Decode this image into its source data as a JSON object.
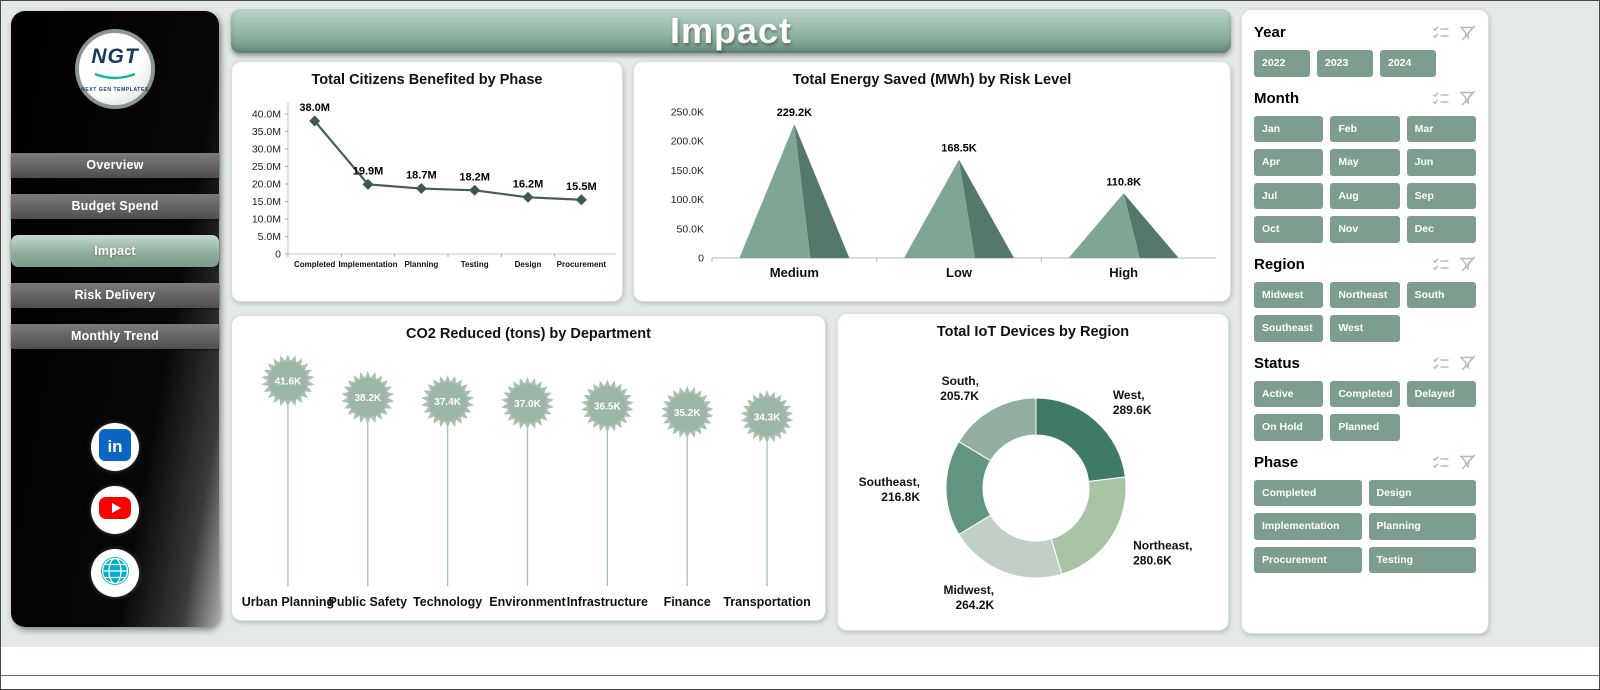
{
  "header": {
    "title": "Impact"
  },
  "sidebar": {
    "logo": {
      "text": "NGT",
      "subtext": "NEXT GEN TEMPLATES"
    },
    "items": [
      {
        "label": "Overview",
        "active": false
      },
      {
        "label": "Budget Spend",
        "active": false
      },
      {
        "label": "Impact",
        "active": true
      },
      {
        "label": "Risk Delivery",
        "active": false
      },
      {
        "label": "Monthly Trend",
        "active": false
      }
    ],
    "social": [
      "linkedin-icon",
      "youtube-icon",
      "globe-icon"
    ]
  },
  "chart_data": [
    {
      "id": "citizens_by_phase",
      "type": "line",
      "title": "Total Citizens Benefited by Phase",
      "categories": [
        "Completed",
        "Implementation",
        "Planning",
        "Testing",
        "Design",
        "Procurement"
      ],
      "values": [
        38.0,
        19.9,
        18.7,
        18.2,
        16.2,
        15.5
      ],
      "labels": [
        "38.0M",
        "19.9M",
        "18.7M",
        "18.2M",
        "16.2M",
        "15.5M"
      ],
      "unit": "M",
      "ylim": [
        0,
        40
      ],
      "yticks": [
        "0",
        "5.0M",
        "10.0M",
        "15.0M",
        "20.0M",
        "25.0M",
        "30.0M",
        "35.0M",
        "40.0M"
      ],
      "grid": false,
      "legend": "none"
    },
    {
      "id": "energy_saved_by_risk",
      "type": "pyramid",
      "title": "Total Energy Saved (MWh) by Risk Level",
      "categories": [
        "Medium",
        "Low",
        "High"
      ],
      "values": [
        229.2,
        168.5,
        110.8
      ],
      "labels": [
        "229.2K",
        "168.5K",
        "110.8K"
      ],
      "unit": "K",
      "ylim": [
        0,
        250
      ],
      "yticks": [
        "0",
        "50.0K",
        "100.0K",
        "150.0K",
        "200.0K",
        "250.0K"
      ],
      "grid": false,
      "legend": "none"
    },
    {
      "id": "co2_reduced_by_department",
      "type": "lollipop",
      "title": "CO2 Reduced (tons) by Department",
      "categories": [
        "Urban Planning",
        "Public Safety",
        "Technology",
        "Environment",
        "Infrastructure",
        "Finance",
        "Transportation"
      ],
      "values": [
        41.6,
        38.2,
        37.4,
        37.0,
        36.5,
        35.2,
        34.3
      ],
      "labels": [
        "41.6K",
        "38.2K",
        "37.4K",
        "37.0K",
        "36.5K",
        "35.2K",
        "34.3K"
      ],
      "unit": "K",
      "ylim": [
        0,
        45
      ],
      "grid": false,
      "legend": "none"
    },
    {
      "id": "iot_devices_by_region",
      "type": "donut",
      "title": "Total IoT Devices by Region",
      "categories": [
        "West",
        "Northeast",
        "Midwest",
        "Southeast",
        "South"
      ],
      "values": [
        289.6,
        280.6,
        264.2,
        216.8,
        205.7
      ],
      "labels": [
        "289.6K",
        "280.6K",
        "264.2K",
        "216.8K",
        "205.7K"
      ],
      "unit": "K",
      "legend": "labels-around"
    }
  ],
  "filters": {
    "slicer_icons": [
      "select-all-icon",
      "clear-filter-icon"
    ],
    "groups": [
      {
        "title": "Year",
        "columns": 3,
        "fixed_width": true,
        "options": [
          "2022",
          "2023",
          "2024"
        ]
      },
      {
        "title": "Month",
        "columns": 3,
        "options": [
          "Jan",
          "Feb",
          "Mar",
          "Apr",
          "May",
          "Jun",
          "Jul",
          "Aug",
          "Sep",
          "Oct",
          "Nov",
          "Dec"
        ]
      },
      {
        "title": "Region",
        "columns": 3,
        "options": [
          "Midwest",
          "Northeast",
          "South",
          "Southeast",
          "West"
        ]
      },
      {
        "title": "Status",
        "columns": 3,
        "options": [
          "Active",
          "Completed",
          "Delayed",
          "On Hold",
          "Planned"
        ]
      },
      {
        "title": "Phase",
        "columns": 2,
        "options": [
          "Completed",
          "Design",
          "Implementation",
          "Planning",
          "Procurement",
          "Testing"
        ]
      }
    ]
  },
  "colors": {
    "background": "#e3eae6",
    "accent": "#7d9e8e",
    "banner_top": "#bad4c6",
    "banner_bottom": "#6e9382",
    "line_series": "#41604f",
    "pyramid_face_light": "#7fa694",
    "pyramid_face_dark": "#54796a",
    "lollipop_fill": "#a3bcac",
    "donut_slices": [
      "#3e7a64",
      "#a8c4a4",
      "#c0d0c5",
      "#61957f",
      "#93ae9f"
    ],
    "sidebar_active": "#8cac9a",
    "nav_button": "#4e4e4e"
  }
}
